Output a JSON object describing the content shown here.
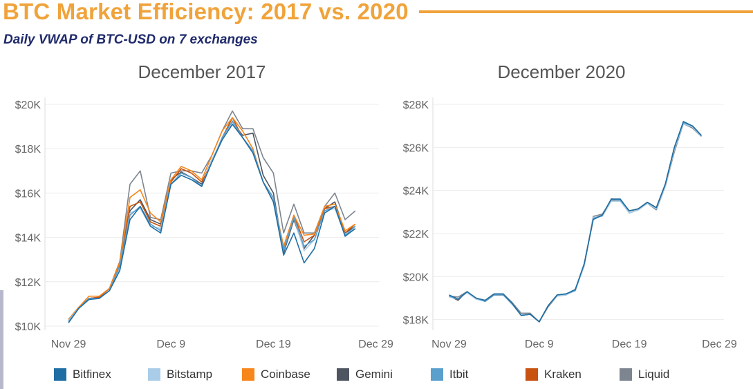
{
  "header": {
    "title": "BTC Market Efficiency: 2017 vs. 2020",
    "subtitle": "Daily VWAP of BTC-USD on 7 exchanges"
  },
  "colors": {
    "accent": "#f0a33a",
    "subtitle": "#1f2a6b",
    "Bitfinex": "#1f6ea3",
    "Bitstamp": "#a9cde8",
    "Coinbase": "#f7861b",
    "Gemini": "#4e5560",
    "Itbit": "#5b9fcd",
    "Kraken": "#c8520f",
    "Liquid": "#7d8590"
  },
  "legend": [
    "Bitfinex",
    "Bitstamp",
    "Coinbase",
    "Gemini",
    "Itbit",
    "Kraken",
    "Liquid"
  ],
  "chart_data": [
    {
      "type": "line",
      "title": "December 2017",
      "xlabel": "",
      "ylabel": "",
      "x_ticks": [
        {
          "day": 0,
          "label": "Nov 29"
        },
        {
          "day": 10,
          "label": "Dec 9"
        },
        {
          "day": 20,
          "label": "Dec 19"
        },
        {
          "day": 30,
          "label": "Dec 29"
        }
      ],
      "y_ticks": [
        {
          "value": 10000,
          "label": "$10K"
        },
        {
          "value": 12000,
          "label": "$12K"
        },
        {
          "value": 14000,
          "label": "$14K"
        },
        {
          "value": 16000,
          "label": "$16K"
        },
        {
          "value": 18000,
          "label": "$18K"
        },
        {
          "value": 20000,
          "label": "$20K"
        }
      ],
      "ylim": [
        10000,
        20000
      ],
      "xlim": [
        -2.3,
        30.3
      ],
      "grid": true,
      "series": [
        {
          "name": "Liquid",
          "values": [
            10200,
            10800,
            11200,
            11300,
            11700,
            12900,
            16400,
            17000,
            14900,
            14800,
            16900,
            17000,
            17000,
            16900,
            17700,
            18800,
            19700,
            18900,
            18900,
            17600,
            16900,
            14200,
            15500,
            14200,
            14200,
            15400,
            16000,
            14800,
            15200
          ]
        },
        {
          "name": "Gemini",
          "values": [
            10300,
            10850,
            11250,
            11300,
            11700,
            12800,
            15200,
            15700,
            14800,
            14600,
            16600,
            16950,
            16700,
            16400,
            17500,
            18400,
            19200,
            18600,
            18700,
            16800,
            16000,
            13300,
            14800,
            13500,
            14100,
            15300,
            15600,
            14200,
            14500
          ]
        },
        {
          "name": "Kraken",
          "values": [
            10250,
            10800,
            11250,
            11300,
            11700,
            12900,
            15400,
            15600,
            14700,
            14500,
            16500,
            17100,
            16900,
            16500,
            17400,
            18500,
            19400,
            18500,
            17900,
            16500,
            15600,
            13500,
            15000,
            13800,
            14100,
            15300,
            15400,
            14200,
            14600
          ]
        },
        {
          "name": "Coinbase",
          "values": [
            10300,
            10850,
            11350,
            11350,
            11700,
            12850,
            15800,
            16150,
            15100,
            14700,
            16600,
            17200,
            17000,
            16600,
            17700,
            18800,
            19400,
            18800,
            18000,
            16500,
            15700,
            13600,
            15000,
            14100,
            14150,
            15400,
            15500,
            14300,
            14600
          ]
        },
        {
          "name": "Bitstamp",
          "values": [
            10250,
            10800,
            11200,
            11250,
            11600,
            12600,
            15100,
            15300,
            14500,
            14400,
            16400,
            16900,
            16700,
            16300,
            17500,
            18400,
            19200,
            18500,
            17900,
            16500,
            15700,
            13400,
            14900,
            13400,
            13900,
            15200,
            15300,
            14100,
            14400
          ]
        },
        {
          "name": "Itbit",
          "values": [
            10200,
            10800,
            11250,
            11250,
            11600,
            12700,
            15000,
            15400,
            14600,
            14300,
            16400,
            16900,
            16700,
            16300,
            17400,
            18500,
            19250,
            18500,
            17900,
            16500,
            15800,
            13400,
            14900,
            13600,
            13900,
            15200,
            15400,
            14100,
            14500
          ]
        },
        {
          "name": "Bitfinex",
          "values": [
            10150,
            10800,
            11200,
            11250,
            11600,
            12500,
            14800,
            15400,
            14500,
            14200,
            16400,
            16800,
            16600,
            16300,
            17400,
            18400,
            19100,
            18500,
            17800,
            16500,
            15600,
            13200,
            14200,
            12850,
            13500,
            15100,
            15400,
            14050,
            14400
          ]
        }
      ]
    },
    {
      "type": "line",
      "title": "December 2020",
      "xlabel": "",
      "ylabel": "",
      "x_ticks": [
        {
          "day": 0,
          "label": "Nov 29"
        },
        {
          "day": 10,
          "label": "Dec 9"
        },
        {
          "day": 20,
          "label": "Dec 19"
        },
        {
          "day": 30,
          "label": "Dec 29"
        }
      ],
      "y_ticks": [
        {
          "value": 18000,
          "label": "$18K"
        },
        {
          "value": 20000,
          "label": "$20K"
        },
        {
          "value": 22000,
          "label": "$22K"
        },
        {
          "value": 24000,
          "label": "$24K"
        },
        {
          "value": 26000,
          "label": "$26K"
        },
        {
          "value": 28000,
          "label": "$28K"
        }
      ],
      "ylim": [
        17700,
        28000
      ],
      "xlim": [
        -1.8,
        30.5
      ],
      "grid": true,
      "series": [
        {
          "name": "Liquid",
          "values": [
            19100,
            19050,
            19300,
            19000,
            18900,
            19200,
            19200,
            18800,
            18300,
            18300,
            17900,
            18600,
            19100,
            19150,
            19400,
            20500,
            22800,
            22900,
            23550,
            23550,
            22950,
            23100,
            23400,
            23100,
            24200,
            25800,
            27100,
            26900,
            26500
          ]
        },
        {
          "name": "Gemini",
          "values": [
            19100,
            18900,
            19300,
            19000,
            18850,
            19150,
            19150,
            18750,
            18200,
            18250,
            17900,
            18650,
            19150,
            19200,
            19350,
            20600,
            22700,
            22850,
            23600,
            23550,
            23050,
            23150,
            23450,
            23200,
            24300,
            26000,
            27150,
            27000,
            26550
          ]
        },
        {
          "name": "Kraken",
          "values": [
            19100,
            18950,
            19300,
            19000,
            18850,
            19150,
            19150,
            18750,
            18200,
            18250,
            17900,
            18650,
            19150,
            19200,
            19350,
            20600,
            22700,
            22850,
            23600,
            23550,
            23050,
            23150,
            23450,
            23200,
            24300,
            26000,
            27150,
            27000,
            26550
          ]
        },
        {
          "name": "Coinbase",
          "values": [
            19100,
            18950,
            19300,
            19000,
            18850,
            19150,
            19150,
            18750,
            18200,
            18250,
            17900,
            18650,
            19150,
            19200,
            19350,
            20600,
            22700,
            22850,
            23600,
            23550,
            23050,
            23150,
            23450,
            23200,
            24300,
            26000,
            27150,
            27000,
            26550
          ]
        },
        {
          "name": "Bitstamp",
          "values": [
            19050,
            18950,
            19250,
            18950,
            18850,
            19150,
            19150,
            18700,
            18200,
            18250,
            17900,
            18650,
            19100,
            19150,
            19350,
            20500,
            22750,
            22800,
            23500,
            23500,
            22950,
            23100,
            23400,
            23150,
            24200,
            25900,
            27100,
            26950,
            26500
          ]
        },
        {
          "name": "Itbit",
          "values": [
            19100,
            18950,
            19300,
            19000,
            18850,
            19150,
            19150,
            18750,
            18200,
            18250,
            17900,
            18650,
            19150,
            19200,
            19350,
            20600,
            22700,
            22850,
            23600,
            23550,
            23050,
            23150,
            23450,
            23200,
            24300,
            26000,
            27150,
            27000,
            26550
          ]
        },
        {
          "name": "Bitfinex",
          "values": [
            19150,
            18950,
            19300,
            19000,
            18900,
            19200,
            19200,
            18750,
            18200,
            18250,
            17900,
            18650,
            19150,
            19200,
            19400,
            20600,
            22650,
            22850,
            23600,
            23600,
            23050,
            23150,
            23450,
            23200,
            24300,
            26000,
            27200,
            27000,
            26550
          ]
        }
      ]
    }
  ]
}
